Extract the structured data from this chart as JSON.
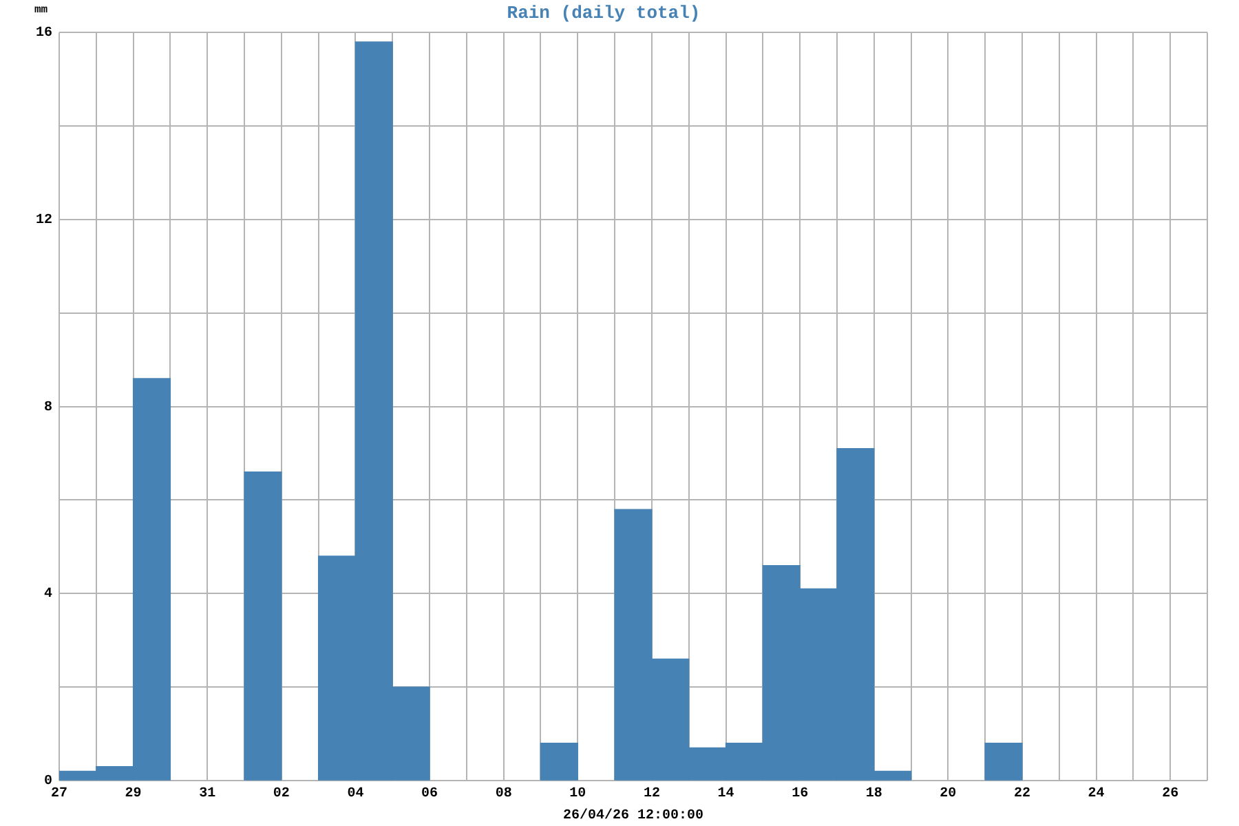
{
  "chart_data": {
    "type": "bar",
    "title": "Rain (daily total)",
    "xlabel": "26/04/26 12:00:00",
    "ylabel": "mm",
    "x": [
      "--03-27T12:00",
      "--03-28T12:00",
      "--03-29T12:00",
      "--04-01T12:00",
      "--04-03T12:00",
      "--04-04T12:00",
      "--04-05T12:00",
      "--04-09T12:00",
      "--04-11T12:00",
      "--04-12T12:00",
      "--04-13T12:00",
      "--04-14T12:00",
      "--04-15T12:00",
      "--04-16T12:00",
      "--04-17T12:00",
      "--04-18T12:00",
      "--04-21T12:00"
    ],
    "values": [
      0.2,
      0.3,
      8.6,
      6.6,
      4.8,
      15.8,
      2.0,
      0.8,
      5.8,
      2.6,
      0.7,
      0.8,
      4.6,
      4.1,
      7.1,
      0.2,
      0.8
    ],
    "color": "#4682b4",
    "xlim": [
      "--03-27",
      "--04-27"
    ],
    "xticks": [
      {
        "value": "--03-27",
        "label": "27"
      },
      {
        "value": "--03-28",
        "label": null
      },
      {
        "value": "--03-29",
        "label": "29"
      },
      {
        "value": "--03-30",
        "label": null
      },
      {
        "value": "--03-31",
        "label": "31"
      },
      {
        "value": "--04-01",
        "label": null
      },
      {
        "value": "--04-02",
        "label": "02"
      },
      {
        "value": "--04-03",
        "label": null
      },
      {
        "value": "--04-04",
        "label": "04"
      },
      {
        "value": "--04-05",
        "label": null
      },
      {
        "value": "--04-06",
        "label": "06"
      },
      {
        "value": "--04-07",
        "label": null
      },
      {
        "value": "--04-08",
        "label": "08"
      },
      {
        "value": "--04-09",
        "label": null
      },
      {
        "value": "--04-10",
        "label": "10"
      },
      {
        "value": "--04-11",
        "label": null
      },
      {
        "value": "--04-12",
        "label": "12"
      },
      {
        "value": "--04-13",
        "label": null
      },
      {
        "value": "--04-14",
        "label": "14"
      },
      {
        "value": "--04-15",
        "label": null
      },
      {
        "value": "--04-16",
        "label": "16"
      },
      {
        "value": "--04-17",
        "label": null
      },
      {
        "value": "--04-18",
        "label": "18"
      },
      {
        "value": "--04-19",
        "label": null
      },
      {
        "value": "--04-20",
        "label": "20"
      },
      {
        "value": "--04-21",
        "label": null
      },
      {
        "value": "--04-22",
        "label": "22"
      },
      {
        "value": "--04-23",
        "label": null
      },
      {
        "value": "--04-24",
        "label": "24"
      },
      {
        "value": "--04-25",
        "label": null
      },
      {
        "value": "--04-26",
        "label": "26"
      },
      {
        "value": "--04-27",
        "label": null
      }
    ],
    "ylim": [
      0,
      16
    ],
    "yticks": [
      0,
      {
        "value": 2,
        "label": null
      },
      4,
      {
        "value": 6,
        "label": null
      },
      8,
      {
        "value": 10,
        "label": null
      },
      12,
      {
        "value": 14,
        "label": null
      },
      16
    ],
    "grid": true
  }
}
